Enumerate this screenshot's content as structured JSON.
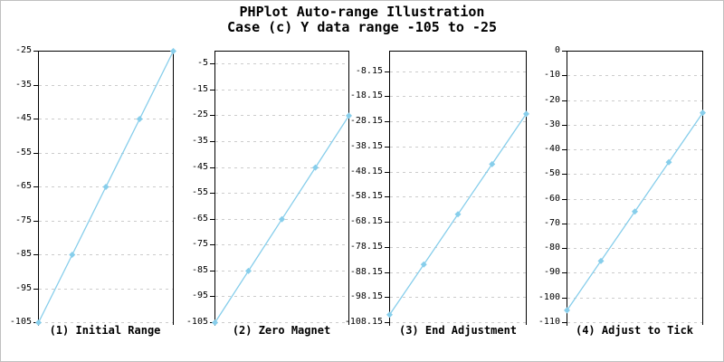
{
  "title": {
    "line1": "PHPlot Auto-range Illustration",
    "line2": "Case (c) Y data range -105 to -25"
  },
  "colors": {
    "line": "#87CEEB",
    "grid": "#cccccc",
    "axis": "#000000",
    "text": "#000000",
    "frame": "#c0c0c0",
    "background": "#ffffff"
  },
  "chart_data": [
    {
      "type": "line",
      "title": "(1) Initial Range",
      "values": [
        -105,
        -85,
        -65,
        -45,
        -25
      ],
      "ylim": [
        -105,
        -25
      ],
      "yticks": [
        -25,
        -35,
        -45,
        -55,
        -65,
        -75,
        -85,
        -95,
        -105
      ],
      "ytick_labels": [
        "-25",
        "-35",
        "-45",
        "-55",
        "-65",
        "-75",
        "-85",
        "-95",
        "-105"
      ],
      "grid": "horizontal-dashed",
      "marker": "diamond",
      "legend": "none"
    },
    {
      "type": "line",
      "title": "(2) Zero Magnet",
      "values": [
        -105,
        -85,
        -65,
        -45,
        -25
      ],
      "ylim": [
        -105,
        0
      ],
      "yticks": [
        -5,
        -15,
        -25,
        -35,
        -45,
        -55,
        -65,
        -75,
        -85,
        -95,
        -105
      ],
      "ytick_labels": [
        "-5",
        "-15",
        "-25",
        "-35",
        "-45",
        "-55",
        "-65",
        "-75",
        "-85",
        "-95",
        "-105"
      ],
      "grid": "horizontal-dashed",
      "marker": "diamond",
      "legend": "none"
    },
    {
      "type": "line",
      "title": "(3) End Adjustment",
      "values": [
        -105,
        -85,
        -65,
        -45,
        -25
      ],
      "ylim": [
        -108.15,
        0
      ],
      "yticks": [
        -8.15,
        -18.15,
        -28.15,
        -38.15,
        -48.15,
        -58.15,
        -68.15,
        -78.15,
        -88.15,
        -98.15,
        -108.15
      ],
      "ytick_labels": [
        "-8.15",
        "-18.15",
        "-28.15",
        "-38.15",
        "-48.15",
        "-58.15",
        "-68.15",
        "-78.15",
        "-88.15",
        "-98.15",
        "-108.15"
      ],
      "grid": "horizontal-dashed",
      "marker": "diamond",
      "legend": "none"
    },
    {
      "type": "line",
      "title": "(4) Adjust to Tick",
      "values": [
        -105,
        -85,
        -65,
        -45,
        -25
      ],
      "ylim": [
        -110,
        0
      ],
      "yticks": [
        0,
        -10,
        -20,
        -30,
        -40,
        -50,
        -60,
        -70,
        -80,
        -90,
        -100,
        -110
      ],
      "ytick_labels": [
        "0",
        "-10",
        "-20",
        "-30",
        "-40",
        "-50",
        "-60",
        "-70",
        "-80",
        "-90",
        "-100",
        "-110"
      ],
      "grid": "horizontal-dashed",
      "marker": "diamond",
      "legend": "none"
    }
  ]
}
